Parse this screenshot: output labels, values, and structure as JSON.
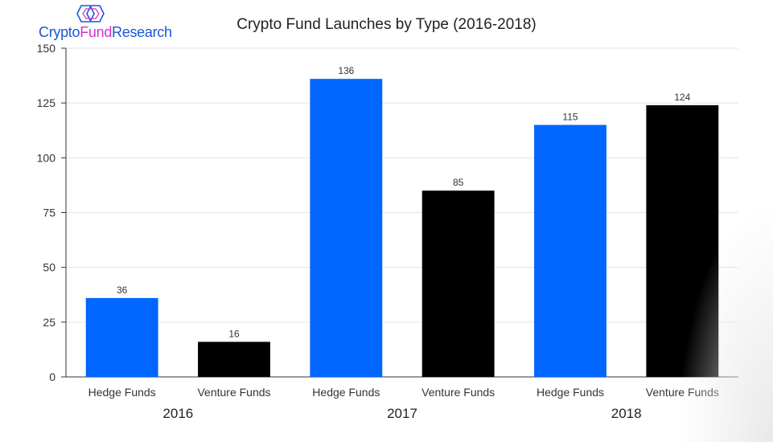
{
  "logo": {
    "part1": "Crypto",
    "part2": "Fund",
    "part3": "Research"
  },
  "colors": {
    "hedge": "#0066ff",
    "venture": "#000000"
  },
  "chart_data": {
    "type": "bar",
    "title": "Crypto Fund Launches by Type (2016-2018)",
    "xlabel": "",
    "ylabel": "",
    "ylim": [
      0,
      150
    ],
    "yticks": [
      0,
      25,
      50,
      75,
      100,
      125,
      150
    ],
    "grid": true,
    "legend": "none",
    "groups": [
      "2016",
      "2017",
      "2018"
    ],
    "categories": [
      "Hedge Funds",
      "Venture Funds",
      "Hedge Funds",
      "Venture Funds",
      "Hedge Funds",
      "Venture Funds"
    ],
    "values": [
      36,
      16,
      136,
      85,
      115,
      124
    ],
    "bar_colors": [
      "#0066ff",
      "#000000",
      "#0066ff",
      "#000000",
      "#0066ff",
      "#000000"
    ]
  }
}
